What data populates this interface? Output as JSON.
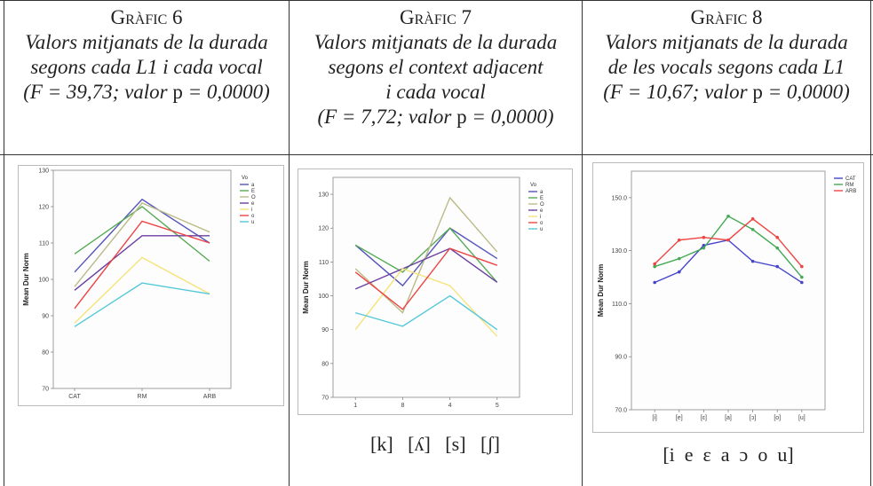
{
  "captions": [
    {
      "label": "Gràfic 6",
      "lines": [
        "Valors mitjanats de la durada",
        "segons cada L1 i cada vocal"
      ],
      "stat_pre": "(F = 39,73; valor ",
      "stat_p": "p",
      "stat_post": " = 0,0000)"
    },
    {
      "label": "Gràfic 7",
      "lines": [
        "Valors mitjanats de la durada",
        "segons el context adjacent",
        "i cada vocal"
      ],
      "stat_pre": "(F = 7,72; valor ",
      "stat_p": "p",
      "stat_post": " = 0,0000)"
    },
    {
      "label": "Gràfic 8",
      "lines": [
        "Valors mitjanats de la durada",
        "de les vocals segons cada L1"
      ],
      "stat_pre": "(F = 10,67; valor ",
      "stat_p": "p",
      "stat_post": " = 0,0000)"
    }
  ],
  "ipa_labels": {
    "chart7": "[k]   [ʎ]   [s]   [ʃ]",
    "chart8": "[i  e  ɛ  a  ɔ  o  u]"
  },
  "chart_data": [
    {
      "type": "line",
      "ylabel": "Mean Dur Norm",
      "legend_title": "Vo",
      "categories": [
        "CAT",
        "RM",
        "ARB"
      ],
      "ylim": [
        70,
        130
      ],
      "yticks": [
        70,
        80,
        90,
        100,
        110,
        120,
        130
      ],
      "series": [
        {
          "name": "a",
          "color": "#5555bb",
          "values": [
            102,
            122,
            110
          ]
        },
        {
          "name": "E",
          "color": "#55aa55",
          "values": [
            107,
            120,
            105
          ]
        },
        {
          "name": "O",
          "color": "#bbbb88",
          "values": [
            98,
            121,
            113
          ]
        },
        {
          "name": "e",
          "color": "#6a3fa0",
          "values": [
            97,
            112,
            112
          ]
        },
        {
          "name": "i",
          "color": "#f5e37a",
          "values": [
            88,
            106,
            96
          ]
        },
        {
          "name": "o",
          "color": "#ee4444",
          "values": [
            92,
            116,
            110
          ]
        },
        {
          "name": "u",
          "color": "#55c8d8",
          "values": [
            87,
            99,
            96
          ]
        }
      ]
    },
    {
      "type": "line",
      "ylabel": "Mean Dur Norm",
      "legend_title": "Vo",
      "categories": [
        "1",
        "8",
        "4",
        "5"
      ],
      "ylim": [
        70,
        135
      ],
      "yticks": [
        70,
        80,
        90,
        100,
        110,
        120,
        130
      ],
      "series": [
        {
          "name": "a",
          "color": "#5555bb",
          "values": [
            115,
            103,
            120,
            111
          ]
        },
        {
          "name": "E",
          "color": "#55aa55",
          "values": [
            115,
            107,
            120,
            104
          ]
        },
        {
          "name": "O",
          "color": "#bbbb88",
          "values": [
            108,
            95,
            129,
            113
          ]
        },
        {
          "name": "e",
          "color": "#6a3fa0",
          "values": [
            102,
            108,
            114,
            104
          ]
        },
        {
          "name": "i",
          "color": "#f5e37a",
          "values": [
            90,
            108,
            103,
            88
          ]
        },
        {
          "name": "o",
          "color": "#ee4444",
          "values": [
            107,
            96,
            114,
            109
          ]
        },
        {
          "name": "u",
          "color": "#55c8d8",
          "values": [
            95,
            91,
            100,
            90
          ]
        }
      ]
    },
    {
      "type": "line",
      "ylabel": "Mean Dur Norm",
      "categories": [
        "[i]",
        "[e]",
        "[ɛ]",
        "[a]",
        "[ɔ]",
        "[o]",
        "[u]"
      ],
      "ylim": [
        70,
        160
      ],
      "yticks": [
        70,
        90,
        110,
        130,
        150
      ],
      "ytick_labels": [
        "70.0",
        "90.0",
        "110.0",
        "130.0",
        "150.0"
      ],
      "series": [
        {
          "name": "CAT",
          "color": "#4444cc",
          "values": [
            118,
            122,
            132,
            134,
            126,
            124,
            118
          ]
        },
        {
          "name": "RM",
          "color": "#44aa55",
          "values": [
            124,
            127,
            131,
            143,
            138,
            131,
            120
          ]
        },
        {
          "name": "ARB",
          "color": "#ee4444",
          "values": [
            125,
            134,
            135,
            134,
            142,
            135,
            124
          ]
        }
      ]
    }
  ]
}
